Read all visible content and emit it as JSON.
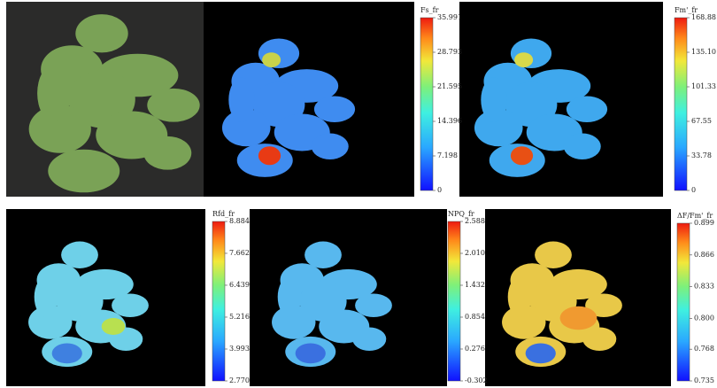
{
  "panels": [
    {
      "colorbar": {
        "title": "Fs_fr",
        "ticks": [
          0,
          7.198,
          14.396,
          21.595,
          28.793,
          35.991
        ]
      }
    },
    {
      "colorbar": {
        "title": "Fm'_fr",
        "ticks": [
          0,
          33.78,
          67.55,
          101.33,
          {
            "value": 135.1,
            "label": "135.10"
          },
          168.88
        ]
      }
    },
    {
      "colorbar": {
        "title": "Rfd_fr",
        "ticks": [
          {
            "value": 2.77,
            "label": "2.770"
          },
          3.993,
          5.216,
          6.439,
          7.662,
          8.884
        ]
      }
    },
    {
      "colorbar": {
        "title": "NPQ_fr",
        "ticks": [
          -0.302,
          0.276,
          0.854,
          1.432,
          {
            "value": 2.01,
            "label": "2.010"
          },
          2.588
        ]
      }
    },
    {
      "colorbar": {
        "title": "ΔF/Fm'_fr",
        "ticks": [
          0.735,
          0.768,
          {
            "value": 0.8,
            "label": "0.800"
          },
          0.833,
          0.866,
          0.899
        ]
      }
    }
  ]
}
